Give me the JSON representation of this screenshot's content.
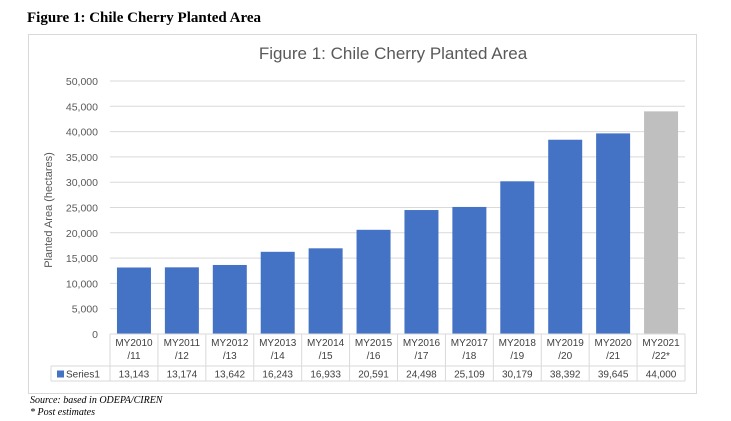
{
  "heading": "Figure 1: Chile Cherry Planted Area",
  "footnotes": {
    "source": "Source: based in ODEPA/CIREN",
    "note": "* Post estimates"
  },
  "colors": {
    "series": "#4472c4",
    "highlight": "#bfbfbf",
    "grid": "#d9d9d9"
  },
  "chart_data": {
    "type": "bar",
    "title": "Figure 1: Chile Cherry Planted Area",
    "ylabel": "Planted Area (hectares)",
    "xlabel": "",
    "ylim": [
      0,
      50000
    ],
    "yticks": [
      "0",
      "5,000",
      "10,000",
      "15,000",
      "20,000",
      "25,000",
      "30,000",
      "35,000",
      "40,000",
      "45,000",
      "50,000"
    ],
    "categories": [
      [
        "MY2010",
        "/11"
      ],
      [
        "MY2011",
        "/12"
      ],
      [
        "MY2012",
        "/13"
      ],
      [
        "MY2013",
        "/14"
      ],
      [
        "MY2014",
        "/15"
      ],
      [
        "MY2015",
        "/16"
      ],
      [
        "MY2016",
        "/17"
      ],
      [
        "MY2017",
        "/18"
      ],
      [
        "MY2018",
        "/19"
      ],
      [
        "MY2019",
        "/20"
      ],
      [
        "MY2020",
        "/21"
      ],
      [
        "MY2021",
        "/22*"
      ]
    ],
    "series": [
      {
        "name": "Series1",
        "values": [
          13143,
          13174,
          13642,
          16243,
          16933,
          20591,
          24498,
          25109,
          30179,
          38392,
          39645,
          44000
        ],
        "labels": [
          "13,143",
          "13,174",
          "13,642",
          "16,243",
          "16,933",
          "20,591",
          "24,498",
          "25,109",
          "30,179",
          "38,392",
          "39,645",
          "44,000"
        ]
      }
    ],
    "grid": true,
    "legend": "data-table",
    "highlight_last_bar": true
  }
}
